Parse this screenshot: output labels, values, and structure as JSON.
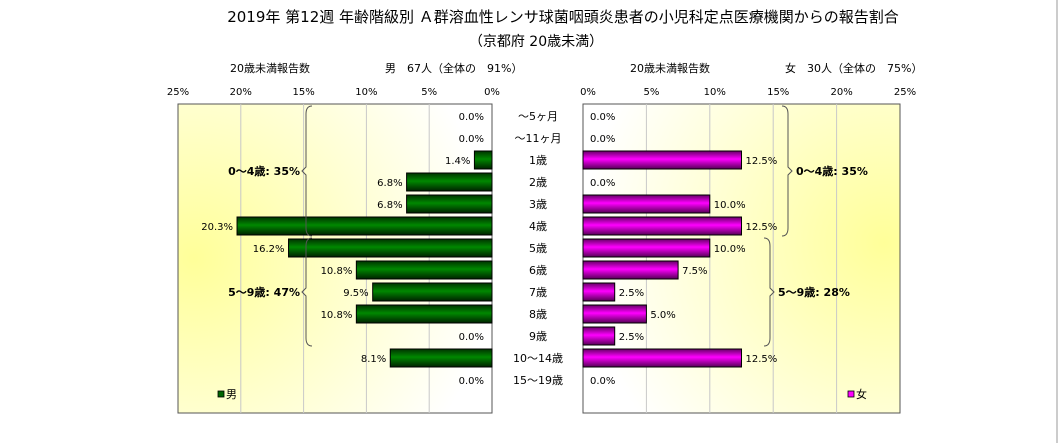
{
  "chart_data": {
    "type": "bar",
    "title": "2019年 第12週 年齢階級別 Ａ群溶血性レンサ球菌咽頭炎患者の小児科定点医療機関からの報告割合",
    "subtitle": "（京都府 20歳未満）",
    "categories": [
      "～5ヶ月",
      "～11ヶ月",
      "1歳",
      "2歳",
      "3歳",
      "4歳",
      "5歳",
      "6歳",
      "7歳",
      "8歳",
      "9歳",
      "10～14歳",
      "15～19歳"
    ],
    "xlim": [
      0,
      25
    ],
    "xticks": [
      "0%",
      "5%",
      "10%",
      "15%",
      "20%",
      "25%"
    ],
    "grid": true,
    "series": [
      {
        "name": "男",
        "color": "#006600",
        "header_label": "20歳未満報告数",
        "header_count": "男　67人（全体の　91%）",
        "values": [
          0.0,
          0.0,
          1.4,
          6.8,
          6.8,
          20.3,
          16.2,
          10.8,
          9.5,
          10.8,
          0.0,
          8.1,
          0.0
        ],
        "labels": [
          "0.0%",
          "0.0%",
          "1.4%",
          "6.8%",
          "6.8%",
          "20.3%",
          "16.2%",
          "10.8%",
          "9.5%",
          "10.8%",
          "0.0%",
          "8.1%",
          "0.0%"
        ],
        "groups": [
          {
            "label": "0～4歳: 35%",
            "from": 0,
            "to": 5
          },
          {
            "label": "5～9歳: 47%",
            "from": 6,
            "to": 10
          }
        ],
        "legend": "男"
      },
      {
        "name": "女",
        "color": "#ff00ff",
        "header_label": "20歳未満報告数",
        "header_count": "女　30人（全体の　75%）",
        "values": [
          0.0,
          0.0,
          12.5,
          0.0,
          10.0,
          12.5,
          10.0,
          7.5,
          2.5,
          5.0,
          2.5,
          12.5,
          0.0
        ],
        "labels": [
          "0.0%",
          "0.0%",
          "12.5%",
          "0.0%",
          "10.0%",
          "12.5%",
          "10.0%",
          "7.5%",
          "2.5%",
          "5.0%",
          "2.5%",
          "12.5%",
          "0.0%"
        ],
        "groups": [
          {
            "label": "0～4歳: 35%",
            "from": 0,
            "to": 5
          },
          {
            "label": "5～9歳: 28%",
            "from": 6,
            "to": 10
          }
        ],
        "legend": "女"
      }
    ]
  }
}
